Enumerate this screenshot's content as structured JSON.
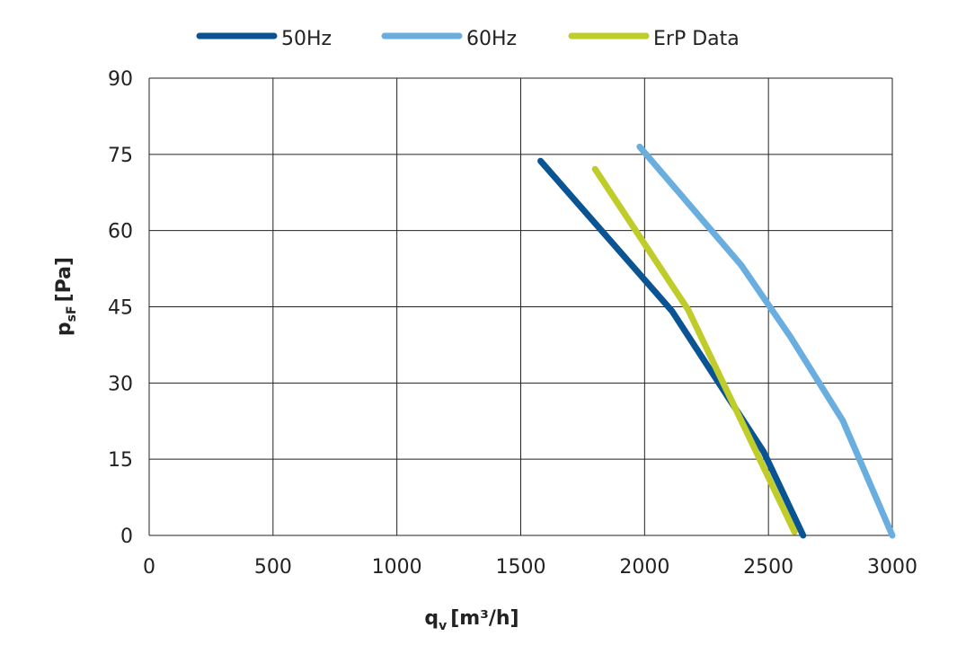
{
  "chart_data": {
    "type": "line",
    "xlabel": "q",
    "xlabel_sub": "v",
    "xlabel_unit": "[m³/h]",
    "ylabel": "p",
    "ylabel_sub": "sF",
    "ylabel_unit": "[Pa]",
    "xlim": [
      0,
      3000
    ],
    "xticks": [
      0,
      500,
      1000,
      1500,
      2000,
      2500,
      3000
    ],
    "ylim": [
      0,
      90
    ],
    "yticks": [
      0,
      15,
      30,
      45,
      60,
      75,
      90
    ],
    "grid": true,
    "legend": "top",
    "series": [
      {
        "name": "50Hz",
        "color": "#0a5493",
        "x": [
          1580,
          2110,
          2480,
          2640
        ],
        "values": [
          73.7,
          44.2,
          16.5,
          0
        ]
      },
      {
        "name": "60Hz",
        "color": "#6aaee0",
        "x": [
          1980,
          2390,
          2590,
          2800,
          3000
        ],
        "values": [
          76.5,
          53.2,
          39,
          22.6,
          0
        ]
      },
      {
        "name": "ErP Data",
        "color": "#bfcc2a",
        "x": [
          1800,
          2176,
          2605
        ],
        "values": [
          72.1,
          44.4,
          0.7
        ]
      }
    ]
  }
}
